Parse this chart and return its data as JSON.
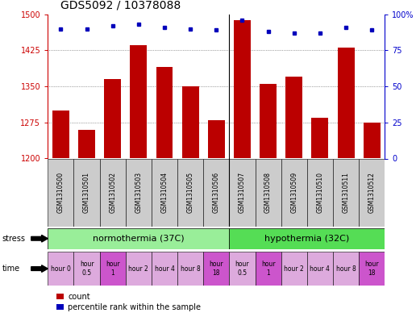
{
  "title": "GDS5092 / 10378088",
  "samples": [
    "GSM1310500",
    "GSM1310501",
    "GSM1310502",
    "GSM1310503",
    "GSM1310504",
    "GSM1310505",
    "GSM1310506",
    "GSM1310507",
    "GSM1310508",
    "GSM1310509",
    "GSM1310510",
    "GSM1310511",
    "GSM1310512"
  ],
  "counts": [
    1300,
    1260,
    1365,
    1435,
    1390,
    1350,
    1280,
    1488,
    1355,
    1370,
    1285,
    1430,
    1275
  ],
  "percentiles": [
    90,
    90,
    92,
    93,
    91,
    90,
    89,
    96,
    88,
    87,
    87,
    91,
    89
  ],
  "ylim_left": [
    1200,
    1500
  ],
  "ylim_right": [
    0,
    100
  ],
  "yticks_left": [
    1200,
    1275,
    1350,
    1425,
    1500
  ],
  "yticks_right": [
    0,
    25,
    50,
    75,
    100
  ],
  "bar_color": "#bb0000",
  "dot_color": "#0000bb",
  "stress_labels": [
    "normothermia (37C)",
    "hypothermia (32C)"
  ],
  "stress_color_norm": "#99ee99",
  "stress_color_hypo": "#55dd55",
  "stress_ranges": [
    [
      0,
      7
    ],
    [
      7,
      13
    ]
  ],
  "time_labels": [
    "hour 0",
    "hour\n0.5",
    "hour\n1",
    "hour 2",
    "hour 4",
    "hour 8",
    "hour\n18",
    "hour\n0.5",
    "hour\n1",
    "hour 2",
    "hour 4",
    "hour 8",
    "hour\n18"
  ],
  "time_colors": [
    "#ddaadd",
    "#ddaadd",
    "#cc55cc",
    "#ddaadd",
    "#ddaadd",
    "#ddaadd",
    "#cc55cc",
    "#ddaadd",
    "#cc55cc",
    "#ddaadd",
    "#ddaadd",
    "#ddaadd",
    "#cc55cc"
  ],
  "sample_box_color": "#cccccc",
  "bg_color": "#ffffff",
  "grid_color": "#555555",
  "title_fontsize": 10,
  "axis_color_left": "#cc0000",
  "axis_color_right": "#0000cc"
}
